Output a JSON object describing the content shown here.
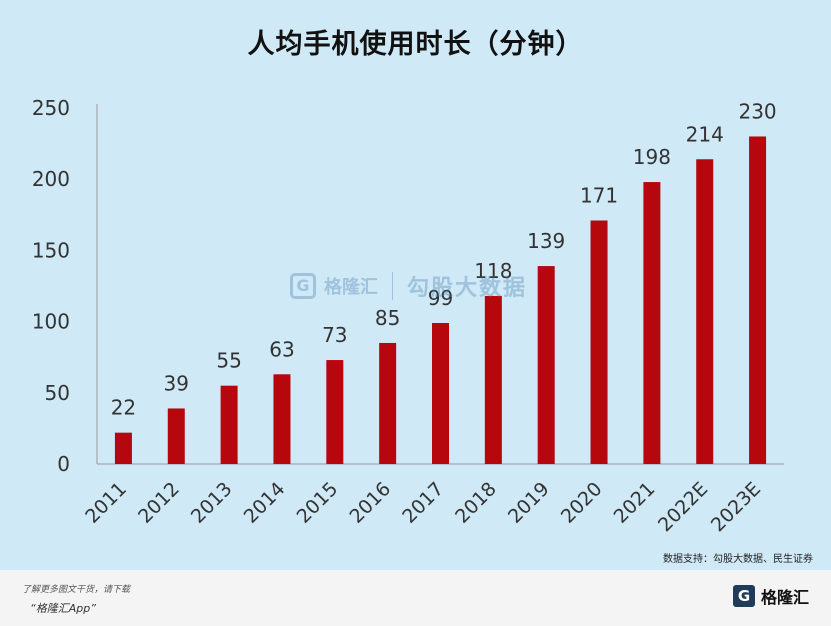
{
  "header": {
    "title": "人均手机使用时长（分钟）"
  },
  "source": {
    "text": "数据支持：勾股大数据、民生证券"
  },
  "watermark": {
    "brand": "格隆汇",
    "partner": "勾股大数据"
  },
  "footer": {
    "line1": "了解更多图文干货，请下载",
    "line2": "“格隆汇App”",
    "brand_mark": "G",
    "brand_text": "格隆汇"
  },
  "colors": {
    "bar": "#b5070d",
    "background": "#cfe9f6",
    "axis": "#9a9a9a"
  },
  "chart_data": {
    "type": "bar",
    "title": "人均手机使用时长（分钟）",
    "categories": [
      "2011",
      "2012",
      "2013",
      "2014",
      "2015",
      "2016",
      "2017",
      "2018",
      "2019",
      "2020",
      "2021",
      "2022E",
      "2023E"
    ],
    "values": [
      22,
      39,
      55,
      63,
      73,
      85,
      99,
      118,
      139,
      171,
      198,
      214,
      230
    ],
    "value_labels": [
      "22",
      "39",
      "55",
      "63",
      "73",
      "85",
      "99",
      "118",
      "139",
      "171",
      "198",
      "214",
      "230"
    ],
    "yticks": [
      0,
      50,
      100,
      150,
      200,
      250
    ],
    "ytick_labels": [
      "0",
      "50",
      "100",
      "150",
      "200",
      "250"
    ],
    "ylim": [
      0,
      250
    ],
    "xlabel": "",
    "ylabel": "",
    "grid": false,
    "legend": "none"
  }
}
